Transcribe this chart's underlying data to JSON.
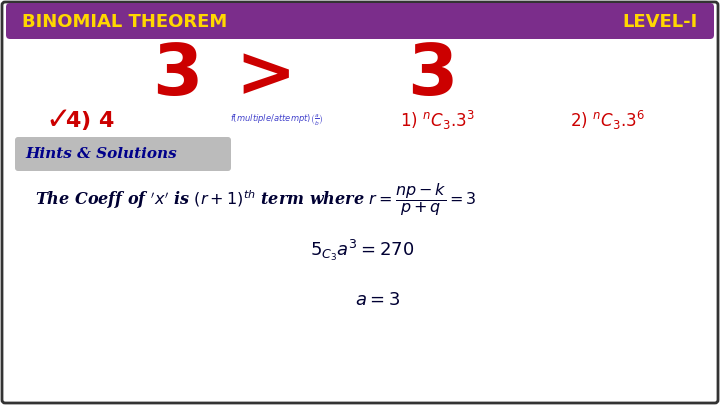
{
  "title_left": "BINOMIAL THEOREM",
  "title_right": "LEVEL-I",
  "title_bg_color": "#7B2D8B",
  "title_text_color": "#FFD700",
  "bg_color": "#FFFFFF",
  "border_color": "#333333",
  "hints_label": "Hints & Solutions",
  "hints_bg": "#BBBBBB",
  "hints_text_color": "#00008B",
  "main_bg": "#FFFFFF"
}
